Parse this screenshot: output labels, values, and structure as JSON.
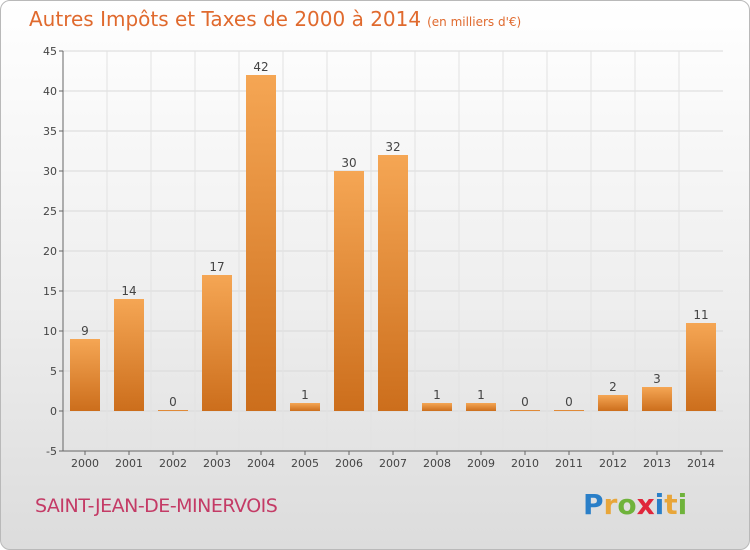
{
  "header": {
    "title": "Autres Impôts et Taxes de 2000 à 2014",
    "unit": "(en milliers d'€)"
  },
  "footer": {
    "commune": "SAINT-JEAN-DE-MINERVOIS",
    "logo": [
      "P",
      "r",
      "o",
      "x",
      "i",
      "t",
      "i"
    ],
    "logo_colors": [
      "#2a7fc8",
      "#e8a63a",
      "#6fb33b",
      "#e0263b",
      "#2a7fc8",
      "#e8a63a",
      "#6fb33b"
    ]
  },
  "chart_data": {
    "type": "bar",
    "categories": [
      "2000",
      "2001",
      "2002",
      "2003",
      "2004",
      "2005",
      "2006",
      "2007",
      "2008",
      "2009",
      "2010",
      "2011",
      "2012",
      "2013",
      "2014"
    ],
    "values": [
      9,
      14,
      0,
      17,
      42,
      1,
      30,
      32,
      1,
      1,
      0,
      0,
      2,
      3,
      11
    ],
    "ylim": [
      -5,
      45
    ],
    "yticks": [
      -5,
      0,
      5,
      10,
      15,
      20,
      25,
      30,
      35,
      40,
      45
    ],
    "grid": true,
    "bar_color": "#f0a050"
  }
}
